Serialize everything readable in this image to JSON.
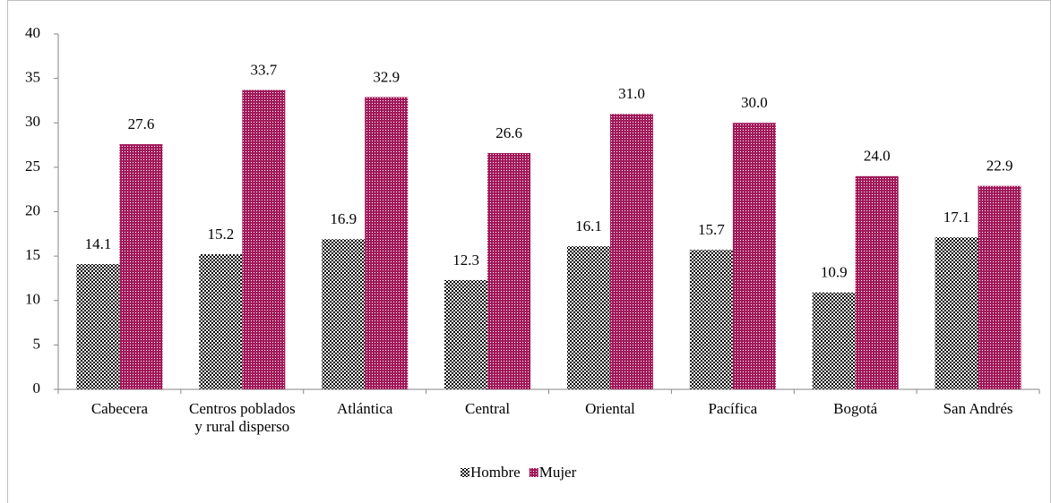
{
  "chart_data": {
    "type": "bar",
    "categories": [
      "Cabecera",
      "Centros poblados y rural disperso",
      "Atlántica",
      "Central",
      "Oriental",
      "Pacífica",
      "Bogotá",
      "San Andrés"
    ],
    "series": [
      {
        "name": "Hombre",
        "color": "#000000",
        "values": [
          14.1,
          15.2,
          16.9,
          12.3,
          16.1,
          15.7,
          10.9,
          17.1
        ],
        "value_labels": [
          "14.1",
          "15.2",
          "16.9",
          "12.3",
          "16.1",
          "15.7",
          "10.9",
          "17.1"
        ]
      },
      {
        "name": "Mujer",
        "color": "#a0195a",
        "values": [
          27.6,
          33.7,
          32.9,
          26.6,
          31,
          30,
          24,
          22.9
        ],
        "value_labels": [
          "27.6",
          "33.7",
          "32.9",
          "26.6",
          "31.0",
          "30.0",
          "24.0",
          "22.9"
        ]
      }
    ],
    "ylim": [
      0,
      40
    ],
    "yticks": [
      0,
      5,
      10,
      15,
      20,
      25,
      30,
      35,
      40
    ],
    "grid": false,
    "legend": "bottom"
  }
}
